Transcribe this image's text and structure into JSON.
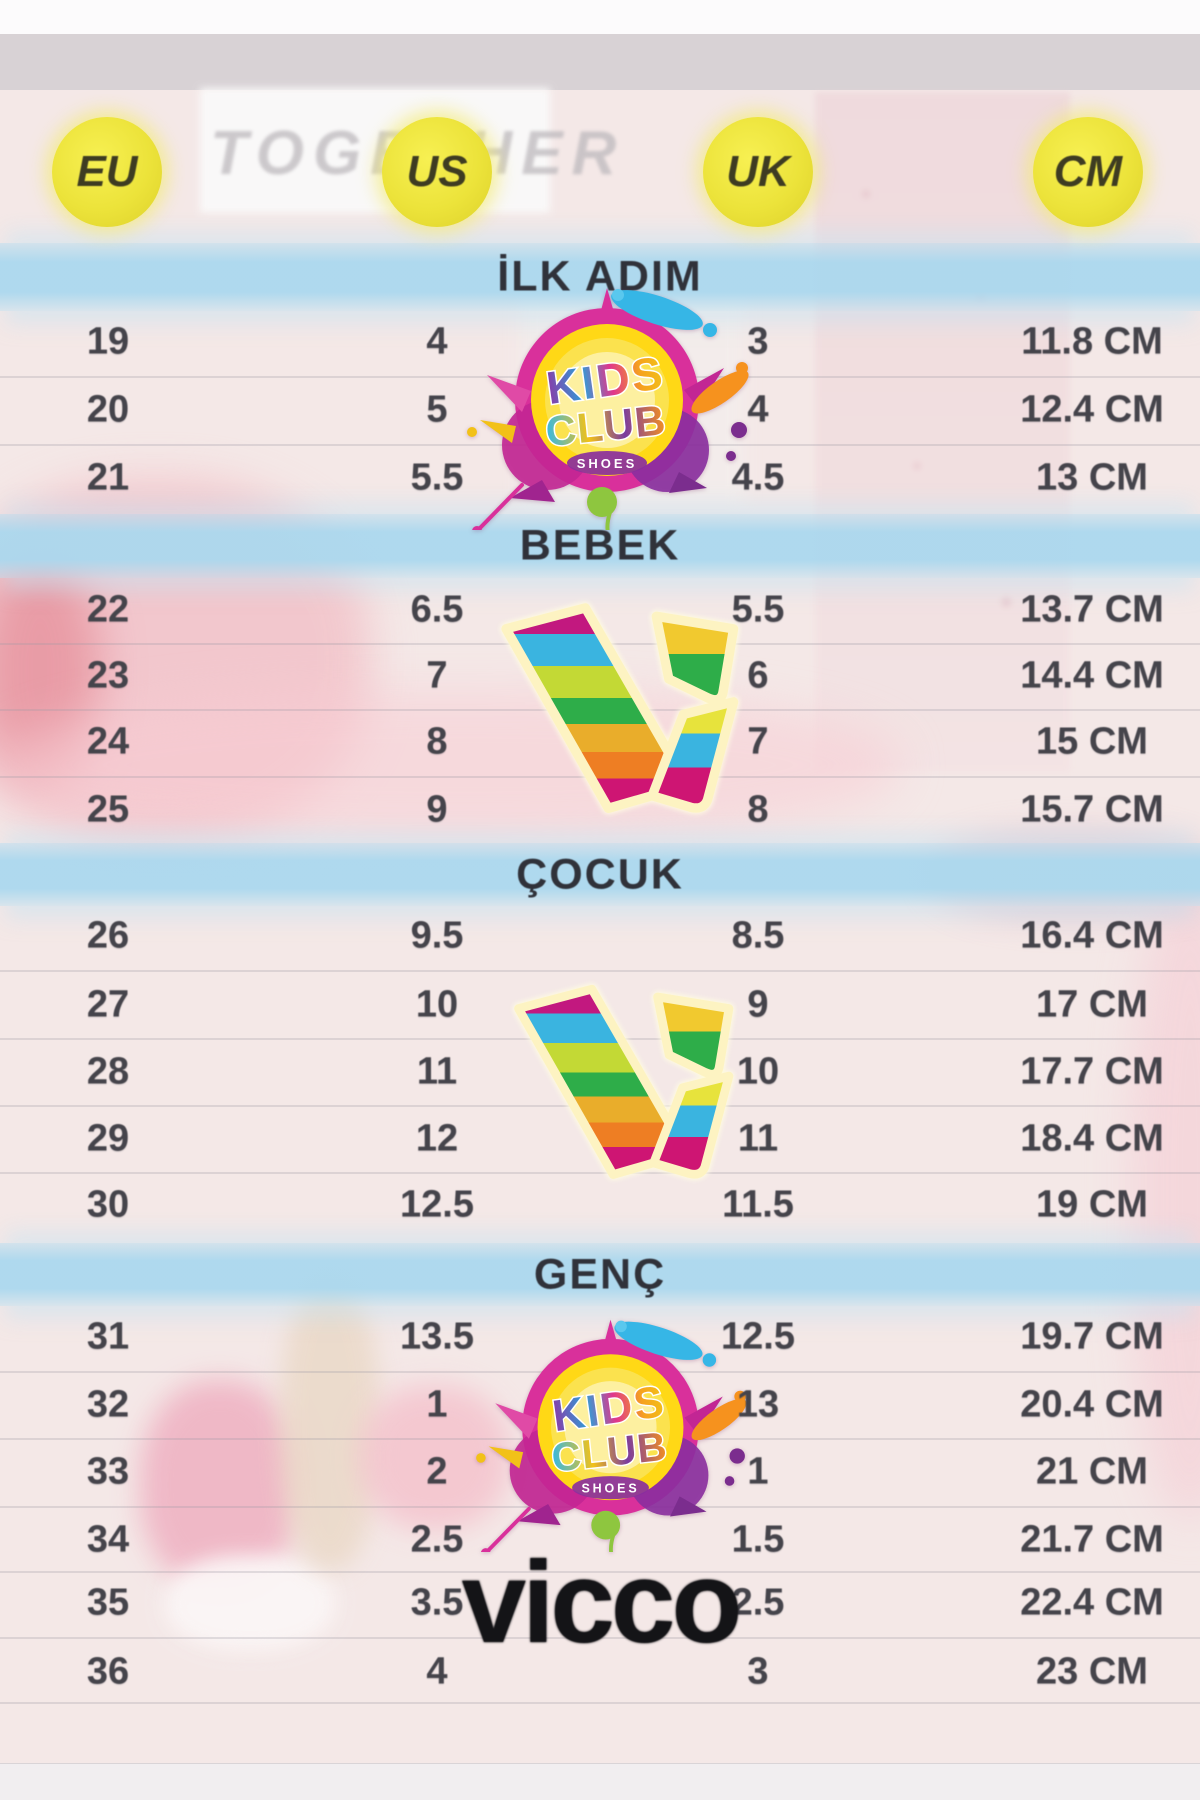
{
  "header": {
    "columns": [
      {
        "label": "EU"
      },
      {
        "label": "US"
      },
      {
        "label": "UK"
      },
      {
        "label": "CM"
      }
    ]
  },
  "watermark": "TOGETHER",
  "sections": [
    {
      "title": "İLK ADIM",
      "rows": [
        [
          "19",
          "4",
          "3",
          "11.8 CM"
        ],
        [
          "20",
          "5",
          "4",
          "12.4 CM"
        ],
        [
          "21",
          "5.5",
          "4.5",
          "13 CM"
        ]
      ]
    },
    {
      "title": "BEBEK",
      "rows": [
        [
          "22",
          "6.5",
          "5.5",
          "13.7 CM"
        ],
        [
          "23",
          "7",
          "6",
          "14.4 CM"
        ],
        [
          "24",
          "8",
          "7",
          "15 CM"
        ],
        [
          "25",
          "9",
          "8",
          "15.7 CM"
        ]
      ]
    },
    {
      "title": "ÇOCUK",
      "rows": [
        [
          "26",
          "9.5",
          "8.5",
          "16.4 CM"
        ],
        [
          "27",
          "10",
          "9",
          "17 CM"
        ],
        [
          "28",
          "11",
          "10",
          "17.7 CM"
        ],
        [
          "29",
          "12",
          "11",
          "18.4 CM"
        ],
        [
          "30",
          "12.5",
          "11.5",
          "19 CM"
        ]
      ]
    },
    {
      "title": "GENÇ",
      "rows": [
        [
          "31",
          "13.5",
          "12.5",
          "19.7 CM"
        ],
        [
          "32",
          "1",
          "13",
          "20.4 CM"
        ],
        [
          "33",
          "2",
          "1",
          "21 CM"
        ],
        [
          "34",
          "2.5",
          "1.5",
          "21.7 CM"
        ],
        [
          "35",
          "3.5",
          "2.5",
          "22.4 CM"
        ],
        [
          "36",
          "4",
          "3",
          "23 CM"
        ]
      ]
    }
  ],
  "logos": {
    "kids_club": {
      "line1": "KIDS",
      "line2": "CLUB",
      "line3": "SHOES"
    },
    "vicco_wordmark": "vicco"
  },
  "colors": {
    "accent_yellow": "#ece33a",
    "stripe_blue": "#abd8ee",
    "text_dark": "#45444b",
    "wordmark_black": "#141417"
  }
}
